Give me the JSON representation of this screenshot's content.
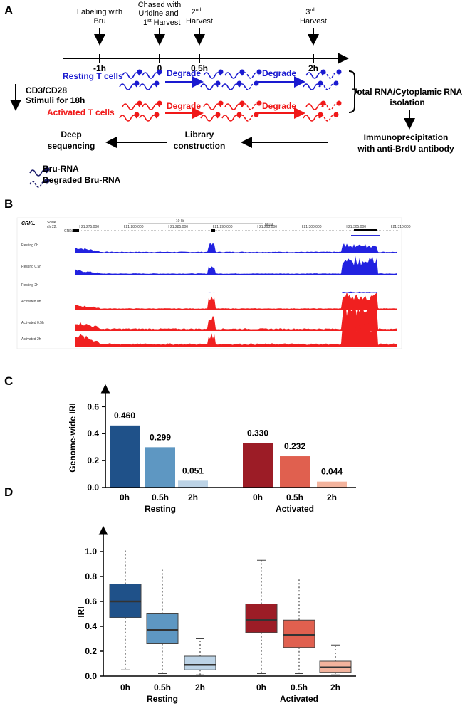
{
  "panel_labels": [
    "A",
    "B",
    "C",
    "D"
  ],
  "schematic": {
    "label_bru": [
      "Labeling with",
      "Bru"
    ],
    "chase": {
      "lines": [
        "Chased with",
        "Uridine and"
      ],
      "num": "1",
      "sup": "st",
      "word": "Harvest"
    },
    "harvest2": {
      "num": "2",
      "sup": "nd",
      "word": "Harvest"
    },
    "harvest3": {
      "num": "3",
      "sup": "rd",
      "word": "Harvest"
    },
    "timepoints": [
      "-1h",
      "0",
      "0.5h",
      "2h"
    ],
    "resting": "Resting T cells",
    "activated": "Activated T cells",
    "stimuli": [
      "CD3/CD28",
      "Stimuli for 18h"
    ],
    "degrade": [
      "Degrade",
      "Degrade",
      "Degrade",
      "Degrade"
    ],
    "isolation": [
      "Total RNA/Cytoplamic RNA",
      "isolation"
    ],
    "ip": [
      "Immunoprecipitation",
      "with anti-BrdU antibody"
    ],
    "library": [
      "Library",
      "construction"
    ],
    "sequencing": [
      "Deep",
      "sequencing"
    ],
    "legend": [
      "Bru-RNA",
      "Degraded Bru-RNA"
    ]
  },
  "browser": {
    "gene": "CRKL",
    "scale": "Scale",
    "chrom": "chr22:",
    "kb": "10 kb",
    "assembly": "hg19",
    "coordinates": [
      "21,275,000",
      "21,280,000",
      "21,285,000",
      "21,290,000",
      "21,295,000",
      "21,300,000",
      "21,305,000",
      "21,310,000"
    ],
    "tracks": [
      "Resting 0h",
      "Resting 0.5h",
      "Resting 2h",
      "Activated 0h",
      "Activated 0.5h",
      "Activated 2h"
    ]
  },
  "chart_data": [
    {
      "type": "bar",
      "ylabel": "Genome-wide IRI",
      "categories": [
        "0h",
        "0.5h",
        "2h",
        "0h",
        "0.5h",
        "2h"
      ],
      "groups": [
        "Resting",
        "Activated"
      ],
      "values": [
        0.46,
        0.299,
        0.051,
        0.33,
        0.232,
        0.044
      ],
      "value_labels": [
        "0.460",
        "0.299",
        "0.051",
        "0.330",
        "0.232",
        "0.044"
      ],
      "colors": [
        "#1f5189",
        "#5e97c2",
        "#bcd3e6",
        "#9c1c26",
        "#e0604f",
        "#f3b39d"
      ],
      "ylim": [
        0,
        0.76
      ],
      "yticks": [
        {
          "value": 0,
          "label": "0.0"
        },
        {
          "value": 0.2,
          "label": "0.2"
        },
        {
          "value": 0.4,
          "label": "0.4"
        },
        {
          "value": 0.6,
          "label": "0.6"
        }
      ]
    },
    {
      "type": "box",
      "ylabel": "IRI",
      "categories": [
        "0h",
        "0.5h",
        "2h",
        "0h",
        "0.5h",
        "2h"
      ],
      "groups": [
        "Resting",
        "Activated"
      ],
      "boxes": [
        {
          "min": 0.05,
          "q1": 0.47,
          "median": 0.6,
          "q3": 0.74,
          "max": 1.02
        },
        {
          "min": 0.02,
          "q1": 0.26,
          "median": 0.37,
          "q3": 0.5,
          "max": 0.86
        },
        {
          "min": 0.01,
          "q1": 0.05,
          "median": 0.09,
          "q3": 0.16,
          "max": 0.3
        },
        {
          "min": 0.02,
          "q1": 0.35,
          "median": 0.45,
          "q3": 0.58,
          "max": 0.93
        },
        {
          "min": 0.02,
          "q1": 0.23,
          "median": 0.33,
          "q3": 0.45,
          "max": 0.78
        },
        {
          "min": 0.01,
          "q1": 0.03,
          "median": 0.07,
          "q3": 0.12,
          "max": 0.25
        }
      ],
      "colors": [
        "#1f5189",
        "#5e97c2",
        "#bcd3e6",
        "#9c1c26",
        "#e0604f",
        "#f3b39d"
      ],
      "ylim": [
        0,
        1.2
      ],
      "yticks": [
        {
          "value": 0,
          "label": "0.0"
        },
        {
          "value": 0.2,
          "label": "0.2"
        },
        {
          "value": 0.4,
          "label": "0.4"
        },
        {
          "value": 0.6,
          "label": "0.6"
        },
        {
          "value": 0.8,
          "label": "0.8"
        },
        {
          "value": 1,
          "label": "1.0"
        }
      ]
    }
  ]
}
